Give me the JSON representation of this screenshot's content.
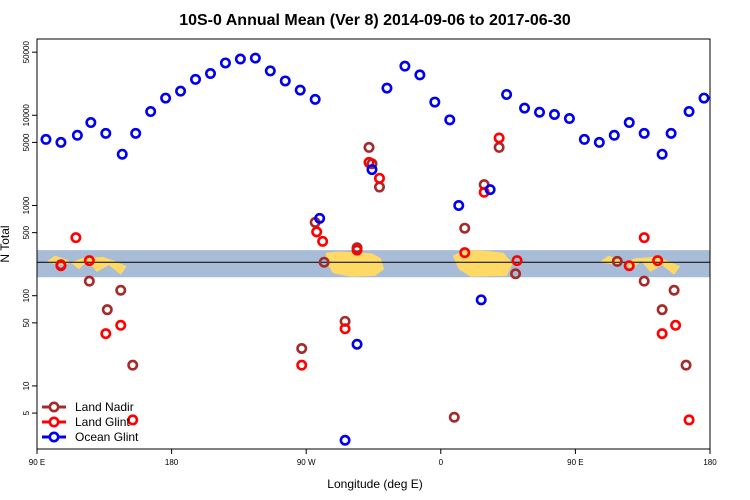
{
  "chart_data": {
    "type": "scatter",
    "title": "10S-0 Annual Mean (Ver 8)   2014-09-06 to 2017-06-30",
    "xlabel": "Longitude (deg E)",
    "ylabel": "N Total",
    "x_ticks": [
      {
        "pos": 90,
        "label": "90 E"
      },
      {
        "pos": 180,
        "label": "180"
      },
      {
        "pos": 270,
        "label": "90 W"
      },
      {
        "pos": 360,
        "label": "0"
      },
      {
        "pos": 450,
        "label": "90 E"
      },
      {
        "pos": 540,
        "label": "180"
      }
    ],
    "y_ticks": [
      5,
      10,
      50,
      100,
      500,
      1000,
      5000,
      10000,
      50000
    ],
    "xlim": [
      90,
      540
    ],
    "ylim_log": [
      2.0,
      70000
    ],
    "grid": false,
    "legend_position": "bottom-left",
    "colors": {
      "land_nadir": "#a52a2a",
      "land_glint": "#ff0000",
      "ocean_glint": "#0000ee",
      "band_fill": "#a8bcd8",
      "land_fill": "#ffd966",
      "ref_line": "#000000"
    },
    "reference_band": {
      "low": 160,
      "high": 320,
      "line": 235
    },
    "series": [
      {
        "name": "Land Nadir",
        "key": "land_nadir",
        "points": [
          [
            106,
            220
          ],
          [
            125,
            145
          ],
          [
            137,
            70
          ],
          [
            146,
            115
          ],
          [
            154,
            17
          ],
          [
            267,
            26
          ],
          [
            276,
            650
          ],
          [
            282,
            235
          ],
          [
            296,
            52
          ],
          [
            304,
            340
          ],
          [
            312,
            4400
          ],
          [
            314,
            2900
          ],
          [
            319,
            1600
          ],
          [
            369,
            4.5
          ],
          [
            376,
            560
          ],
          [
            389,
            1700
          ],
          [
            399,
            4400
          ],
          [
            410,
            175
          ],
          [
            478,
            240
          ],
          [
            496,
            145
          ],
          [
            508,
            70
          ],
          [
            516,
            115
          ],
          [
            524,
            17
          ]
        ]
      },
      {
        "name": "Land Glint",
        "key": "land_glint",
        "points": [
          [
            106,
            215
          ],
          [
            116,
            440
          ],
          [
            125,
            245
          ],
          [
            136,
            38
          ],
          [
            146,
            47
          ],
          [
            154,
            4.2
          ],
          [
            267,
            17
          ],
          [
            277,
            510
          ],
          [
            281,
            400
          ],
          [
            296,
            43
          ],
          [
            304,
            320
          ],
          [
            312,
            3000
          ],
          [
            319,
            2000
          ],
          [
            376,
            300
          ],
          [
            389,
            1400
          ],
          [
            399,
            5600
          ],
          [
            411,
            245
          ],
          [
            486,
            215
          ],
          [
            496,
            440
          ],
          [
            505,
            245
          ],
          [
            508,
            38
          ],
          [
            517,
            47
          ],
          [
            526,
            4.2
          ]
        ]
      },
      {
        "name": "Ocean Glint",
        "key": "ocean_glint",
        "points": [
          [
            96,
            5400
          ],
          [
            106,
            5000
          ],
          [
            117,
            6000
          ],
          [
            126,
            8300
          ],
          [
            136,
            6300
          ],
          [
            147,
            3700
          ],
          [
            156,
            6300
          ],
          [
            166,
            11000
          ],
          [
            176,
            15500
          ],
          [
            186,
            18500
          ],
          [
            196,
            25000
          ],
          [
            206,
            29000
          ],
          [
            216,
            38000
          ],
          [
            226,
            42000
          ],
          [
            236,
            43000
          ],
          [
            246,
            31000
          ],
          [
            256,
            24000
          ],
          [
            266,
            19000
          ],
          [
            276,
            15000
          ],
          [
            279,
            720
          ],
          [
            304,
            29
          ],
          [
            296,
            2.5
          ],
          [
            314,
            2500
          ],
          [
            324,
            20000
          ],
          [
            336,
            35000
          ],
          [
            346,
            28000
          ],
          [
            356,
            14000
          ],
          [
            366,
            8900
          ],
          [
            372,
            1000
          ],
          [
            387,
            90
          ],
          [
            393,
            1500
          ],
          [
            404,
            17000
          ],
          [
            416,
            12000
          ],
          [
            426,
            10800
          ],
          [
            436,
            10200
          ],
          [
            446,
            9200
          ],
          [
            456,
            5400
          ],
          [
            466,
            5000
          ],
          [
            476,
            6000
          ],
          [
            486,
            8300
          ],
          [
            496,
            6300
          ],
          [
            508,
            3700
          ],
          [
            514,
            6300
          ],
          [
            526,
            11000
          ],
          [
            536,
            15500
          ]
        ]
      }
    ]
  }
}
